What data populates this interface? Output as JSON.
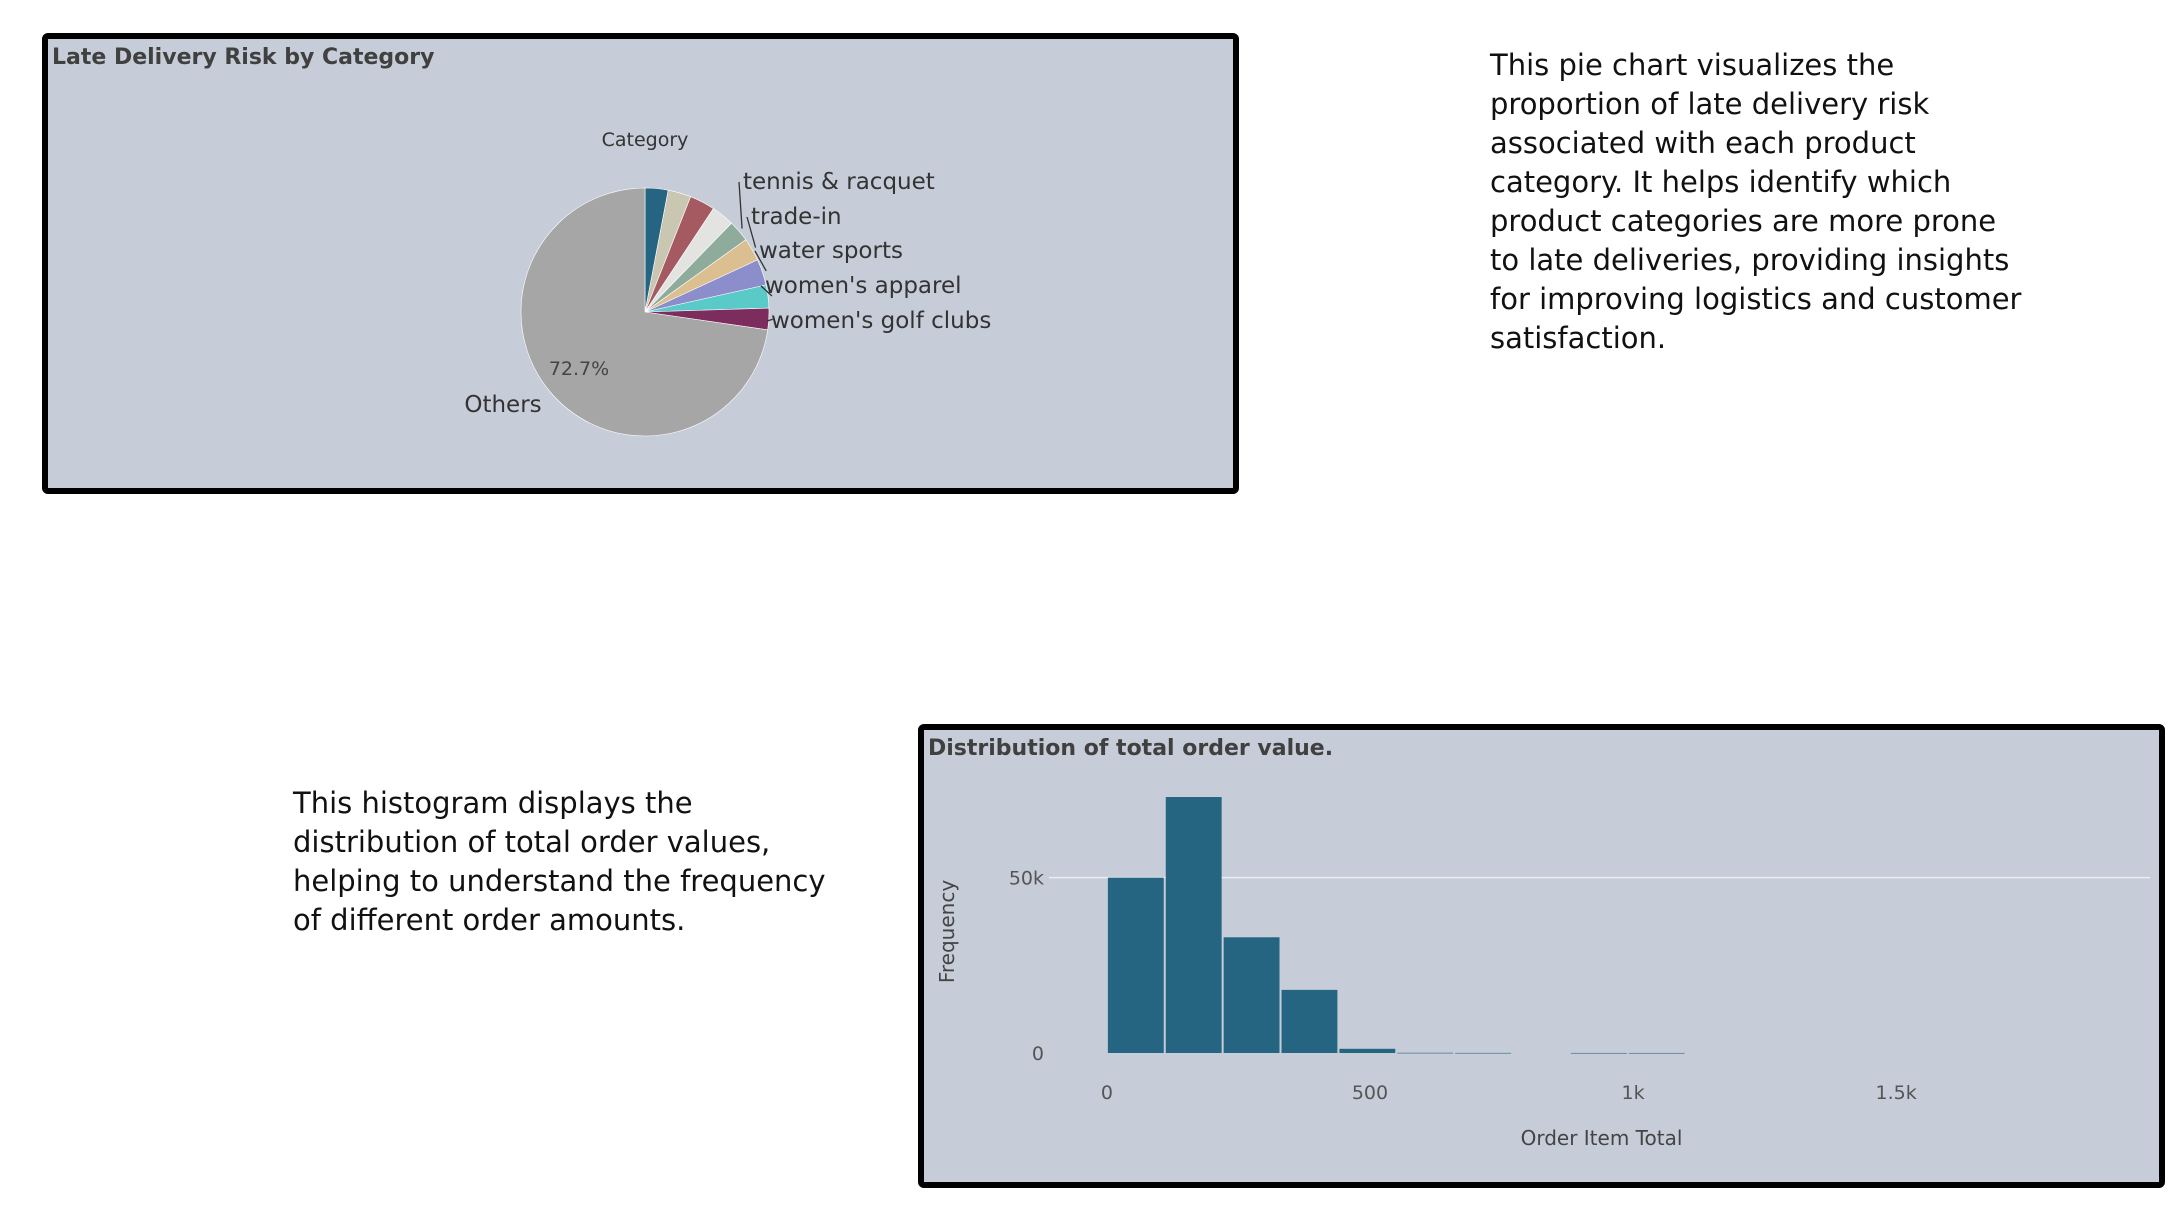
{
  "charts": {
    "pie": {
      "title": "Late Delivery Risk by Category",
      "description": "This pie chart visualizes the proportion of late delivery risk associated with each product category. It helps identify which product categories are more prone to late deliveries, providing insights for improving logistics and customer satisfaction."
    },
    "histogram": {
      "title": "Distribution of total order value.",
      "description": "This histogram displays the distribution of total order values, helping to understand the frequency of different order amounts."
    }
  },
  "chart_data": [
    {
      "type": "pie",
      "title": "Late Delivery Risk by Category",
      "legend_title": "Category",
      "slices": [
        {
          "label": "",
          "value": 3.0,
          "color": "#266582"
        },
        {
          "label": "",
          "value": 3.0,
          "color": "#c9c7b1"
        },
        {
          "label": "",
          "value": 3.3,
          "color": "#a55a61"
        },
        {
          "label": "",
          "value": 3.0,
          "color": "#e3e3e1"
        },
        {
          "label": "tennis & racquet",
          "value": 2.8,
          "color": "#8eab9b"
        },
        {
          "label": "trade-in",
          "value": 3.0,
          "color": "#dcbf91"
        },
        {
          "label": "water sports",
          "value": 3.4,
          "color": "#8b8ecb"
        },
        {
          "label": "women's apparel",
          "value": 3.0,
          "color": "#5acac8"
        },
        {
          "label": "women's golf clubs",
          "value": 2.8,
          "color": "#7d2d5d"
        },
        {
          "label": "Others",
          "value": 72.7,
          "color": "#a6a6a6",
          "pct_label": "72.7%"
        }
      ]
    },
    {
      "type": "bar",
      "subtype": "histogram",
      "title": "Distribution of total order value.",
      "xlabel": "Order Item Total",
      "ylabel": "Frequency",
      "bin_width": 110,
      "bins": [
        {
          "x0": 0,
          "x1": 110,
          "count": 50000
        },
        {
          "x0": 110,
          "x1": 220,
          "count": 73000
        },
        {
          "x0": 220,
          "x1": 330,
          "count": 33000
        },
        {
          "x0": 330,
          "x1": 440,
          "count": 18000
        },
        {
          "x0": 440,
          "x1": 550,
          "count": 1200
        },
        {
          "x0": 550,
          "x1": 660,
          "count": 60
        },
        {
          "x0": 660,
          "x1": 770,
          "count": 30
        },
        {
          "x0": 880,
          "x1": 990,
          "count": 15
        },
        {
          "x0": 990,
          "x1": 1100,
          "count": 15
        }
      ],
      "xlim": [
        -110,
        1990
      ],
      "ylim": [
        0,
        75000
      ],
      "x_ticks": [
        {
          "value": 0,
          "label": "0"
        },
        {
          "value": 500,
          "label": "500"
        },
        {
          "value": 1000,
          "label": "1k"
        },
        {
          "value": 1500,
          "label": "1.5k"
        }
      ],
      "y_ticks": [
        {
          "value": 0,
          "label": "0"
        },
        {
          "value": 50000,
          "label": "50k"
        }
      ],
      "bar_color": "#266582",
      "grid": true
    }
  ]
}
